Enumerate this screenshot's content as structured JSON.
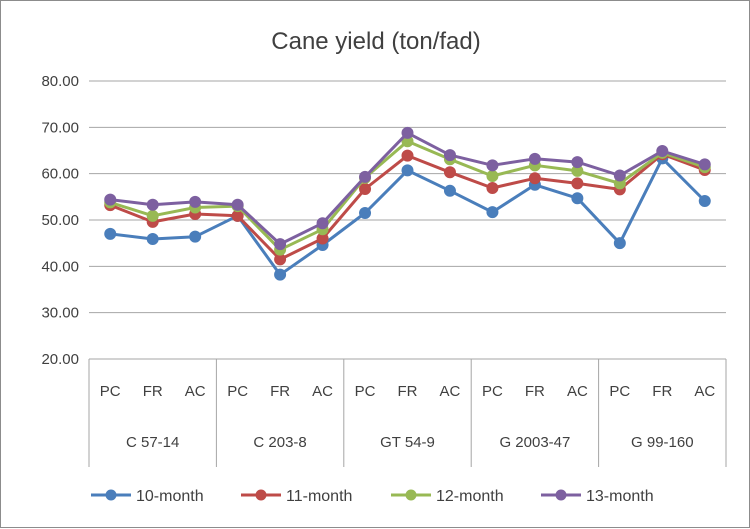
{
  "chart_data": {
    "type": "line",
    "title": "Cane yield (ton/fad)",
    "xlabel": "",
    "ylabel": "",
    "ylim": [
      20,
      80
    ],
    "yticks": [
      "20.00",
      "30.00",
      "40.00",
      "50.00",
      "60.00",
      "70.00",
      "80.00"
    ],
    "grid": true,
    "legend_position": "bottom",
    "categories": [
      "PC",
      "FR",
      "AC",
      "PC",
      "FR",
      "AC",
      "PC",
      "FR",
      "AC",
      "PC",
      "FR",
      "AC",
      "PC",
      "FR",
      "AC"
    ],
    "groups": [
      "C 57-14",
      "C 203-8",
      "GT 54-9",
      "G 2003-47",
      "G 99-160"
    ],
    "series": [
      {
        "name": "10-month",
        "color": "#4a7ebb",
        "values": [
          47.0,
          45.9,
          46.4,
          50.9,
          38.2,
          44.6,
          51.5,
          60.7,
          56.3,
          51.7,
          57.6,
          54.7,
          45.0,
          63.3,
          54.1
        ]
      },
      {
        "name": "11-month",
        "color": "#be4b48",
        "values": [
          53.2,
          49.6,
          51.3,
          50.9,
          41.5,
          46.0,
          56.7,
          63.9,
          60.3,
          56.9,
          59.0,
          57.9,
          56.6,
          64.2,
          60.8
        ]
      },
      {
        "name": "12-month",
        "color": "#98b954",
        "values": [
          53.8,
          50.9,
          52.7,
          53.0,
          43.6,
          48.0,
          59.1,
          67.0,
          63.1,
          59.5,
          61.8,
          60.6,
          57.9,
          64.5,
          61.4
        ]
      },
      {
        "name": "13-month",
        "color": "#7d60a0",
        "values": [
          54.4,
          53.3,
          53.9,
          53.3,
          44.8,
          49.3,
          59.3,
          68.8,
          64.0,
          61.8,
          63.2,
          62.5,
          59.6,
          64.9,
          62.0
        ]
      }
    ]
  }
}
